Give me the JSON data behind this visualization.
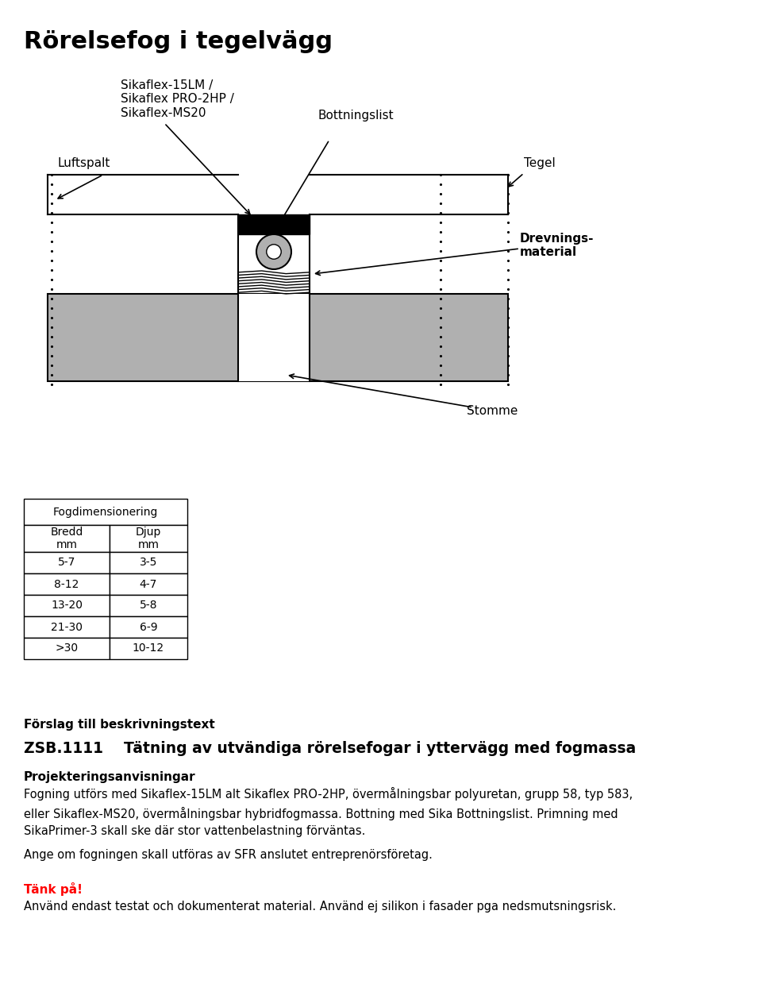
{
  "title": "Rörelsefog i tegelvägg",
  "title_fontsize": 22,
  "title_fontweight": "bold",
  "bg_color": "#ffffff",
  "text_color": "#000000",
  "label_sika": "Sikaflex-15LM /\nSikaflex PRO-2HP /\nSikaflex-MS20",
  "label_bottning": "Bottningslist",
  "label_luftspalt": "Luftspalt",
  "label_tegel": "Tegel",
  "label_drevnings": "Drevnings-\nmaterial",
  "label_stomme": "Stomme",
  "table_title": "Fogdimensionering",
  "col1_header": "Bredd\nmm",
  "col2_header": "Djup\nmm",
  "table_data": [
    [
      "5-7",
      "3-5"
    ],
    [
      "8-12",
      "4-7"
    ],
    [
      "13-20",
      "5-8"
    ],
    [
      "21-30",
      "6-9"
    ],
    [
      ">30",
      "10-12"
    ]
  ],
  "section_heading": "Förslag till beskrivningstext",
  "zsb_line": "ZSB.1111    Tätning av utvändiga rörelsefogar i yttervägg med fogmassa",
  "proj_heading": "Projekteringsanvisningar",
  "proj_text": "Fogning utförs med Sikaflex-15LM alt Sikaflex PRO-2HP, övermålningsbar polyuretan, grupp 58, typ 583,\neller Sikaflex-MS20, övermålningsbar hybridfogmassa. Bottning med Sika Bottningslist. Primning med\nSikaPrimer-3 skall ske där stor vattenbelastning förväntas.",
  "sfr_text": "Ange om fogningen skall utföras av SFR anslutet entreprenörsföretag.",
  "tank_heading": "Tänk på!",
  "tank_text": "Använd endast testat och dokumenterat material. Använd ej silikon i fasader pga nedsmutsningsrisk.",
  "gray_color": "#b0b0b0",
  "dark_gray": "#505050",
  "light_gray": "#d0d0d0"
}
